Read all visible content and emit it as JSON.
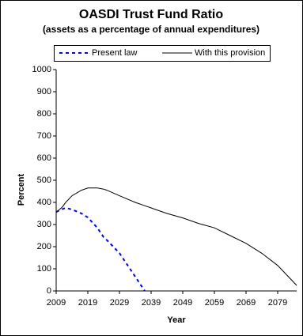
{
  "chart_data": {
    "type": "line",
    "title": "OASDI Trust Fund Ratio",
    "subtitle": "(assets as a percentage of annual expenditures)",
    "x_label": "Year",
    "y_label": "Percent",
    "x": [
      2009,
      2011,
      2012,
      2014,
      2017,
      2019,
      2022,
      2024,
      2025,
      2029,
      2034,
      2037,
      2039,
      2044,
      2049,
      2054,
      2059,
      2064,
      2069,
      2074,
      2079,
      2082,
      2085
    ],
    "series": [
      {
        "name": "Present law",
        "color": "#0000ff",
        "dash": true,
        "values": [
          357,
          370,
          375,
          368,
          350,
          332,
          285,
          243,
          230,
          171,
          64,
          0,
          null,
          null,
          null,
          null,
          null,
          null,
          null,
          null,
          null,
          null,
          null
        ]
      },
      {
        "name": "With this provision",
        "color": "#000000",
        "dash": false,
        "values": [
          355,
          380,
          400,
          430,
          455,
          465,
          465,
          460,
          455,
          430,
          400,
          385,
          375,
          350,
          330,
          305,
          285,
          250,
          215,
          170,
          115,
          70,
          25
        ]
      }
    ],
    "xlim": [
      2009,
      2085
    ],
    "xticks": [
      2009,
      2019,
      2029,
      2039,
      2049,
      2059,
      2069,
      2079
    ],
    "ylim": [
      0,
      1000
    ],
    "yticks": [
      0,
      100,
      200,
      300,
      400,
      500,
      600,
      700,
      800,
      900,
      1000
    ],
    "grid": false,
    "legend": "top"
  }
}
